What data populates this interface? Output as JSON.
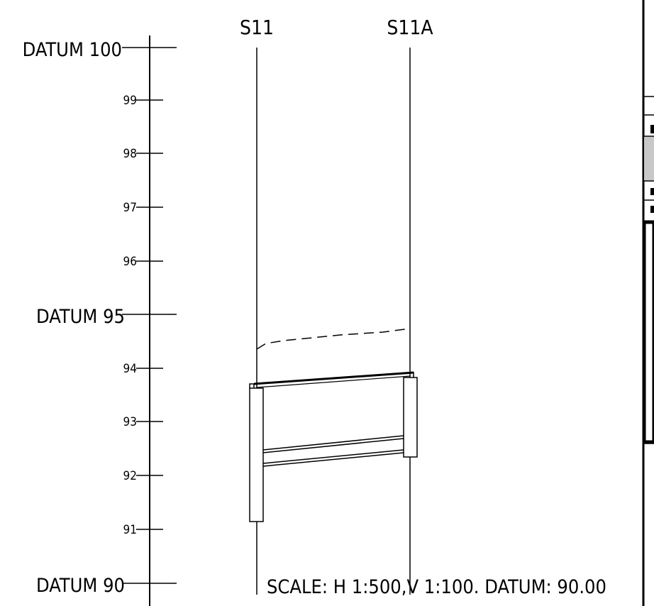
{
  "sections": [
    {
      "label": "S11"
    },
    {
      "label": "S11A"
    }
  ],
  "datums": [
    {
      "value": 100,
      "label": "DATUM 100"
    },
    {
      "value": 95,
      "label": "DATUM 95"
    },
    {
      "value": 90,
      "label": "DATUM 90"
    }
  ],
  "ticks": [
    "99",
    "98",
    "97",
    "96",
    "94",
    "93",
    "92",
    "91"
  ],
  "scale_note": "SCALE: H 1:500,V 1:100. DATUM: 90.00",
  "colors": {
    "line": "#000000",
    "fill": "#ffffff",
    "panel_shade": "#c8c8c8"
  }
}
